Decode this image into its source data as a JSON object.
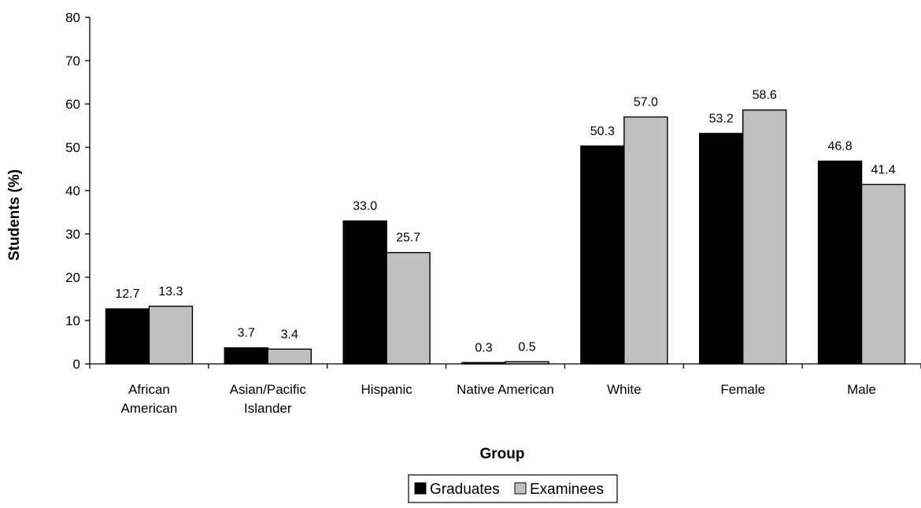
{
  "chart_data": {
    "type": "bar",
    "xlabel": "Group",
    "ylabel": "Students (%)",
    "ylim": [
      0,
      80
    ],
    "yticks": [
      0,
      10,
      20,
      30,
      40,
      50,
      60,
      70,
      80
    ],
    "categories": [
      [
        "African",
        "American"
      ],
      [
        "Asian/Pacific",
        "Islander"
      ],
      [
        "Hispanic"
      ],
      [
        "Native American"
      ],
      [
        "White"
      ],
      [
        "Female"
      ],
      [
        "Male"
      ]
    ],
    "series": [
      {
        "name": "Graduates",
        "color": "#000000",
        "values": [
          12.7,
          3.7,
          33.0,
          0.3,
          50.3,
          53.2,
          46.8
        ],
        "labels": [
          "12.7",
          "3.7",
          "33.0",
          "0.3",
          "50.3",
          "53.2",
          "46.8"
        ]
      },
      {
        "name": "Examinees",
        "color": "#c0c0c0",
        "values": [
          13.3,
          3.4,
          25.7,
          0.5,
          57.0,
          58.6,
          41.4
        ],
        "labels": [
          "13.3",
          "3.4",
          "25.7",
          "0.5",
          "57.0",
          "58.6",
          "41.4"
        ]
      }
    ],
    "grid": false,
    "legend": "bottom-center"
  }
}
